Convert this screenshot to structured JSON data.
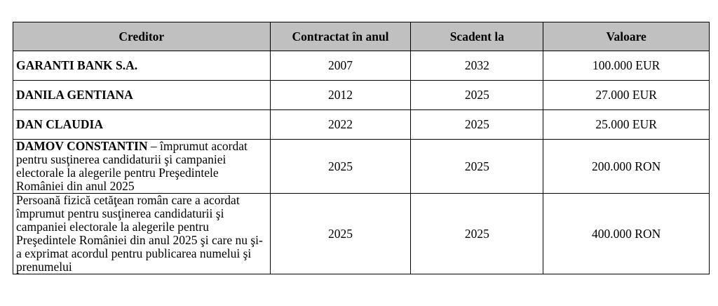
{
  "table": {
    "headers": [
      "Creditor",
      "Contractat în anul",
      "Scadent la",
      "Valoare"
    ],
    "rows": [
      {
        "creditor": "GARANTI BANK S.A.",
        "contracted": 2007,
        "due": 2032,
        "value": "100.000 EUR"
      },
      {
        "creditor": "DANILA GENTIANA",
        "contracted": 2012,
        "due": 2025,
        "value": "27.000 EUR"
      },
      {
        "creditor": "DAN CLAUDIA",
        "contracted": 2022,
        "due": 2025,
        "value": "25.000 EUR"
      },
      {
        "creditor": "DAMOV CONSTANTIN",
        "note": "– împrumut acordat pentru susţinerea candidaturii şi campaniei electorale la alegerile pentru Preşedintele României din anul 2025",
        "contracted": 2025,
        "due": 2025,
        "value": "200.000 RON"
      },
      {
        "note": "Persoană fizică cetăţean român care a acordat împrumut pentru susţinerea candidaturii şi campaniei electorale la alegerile pentru Preşedintele României din anul 2025 şi care nu şi-a exprimat acordul pentru publicarea numelui şi prenumelui",
        "contracted": 2025,
        "due": 2025,
        "value": "400.000 RON"
      }
    ]
  }
}
